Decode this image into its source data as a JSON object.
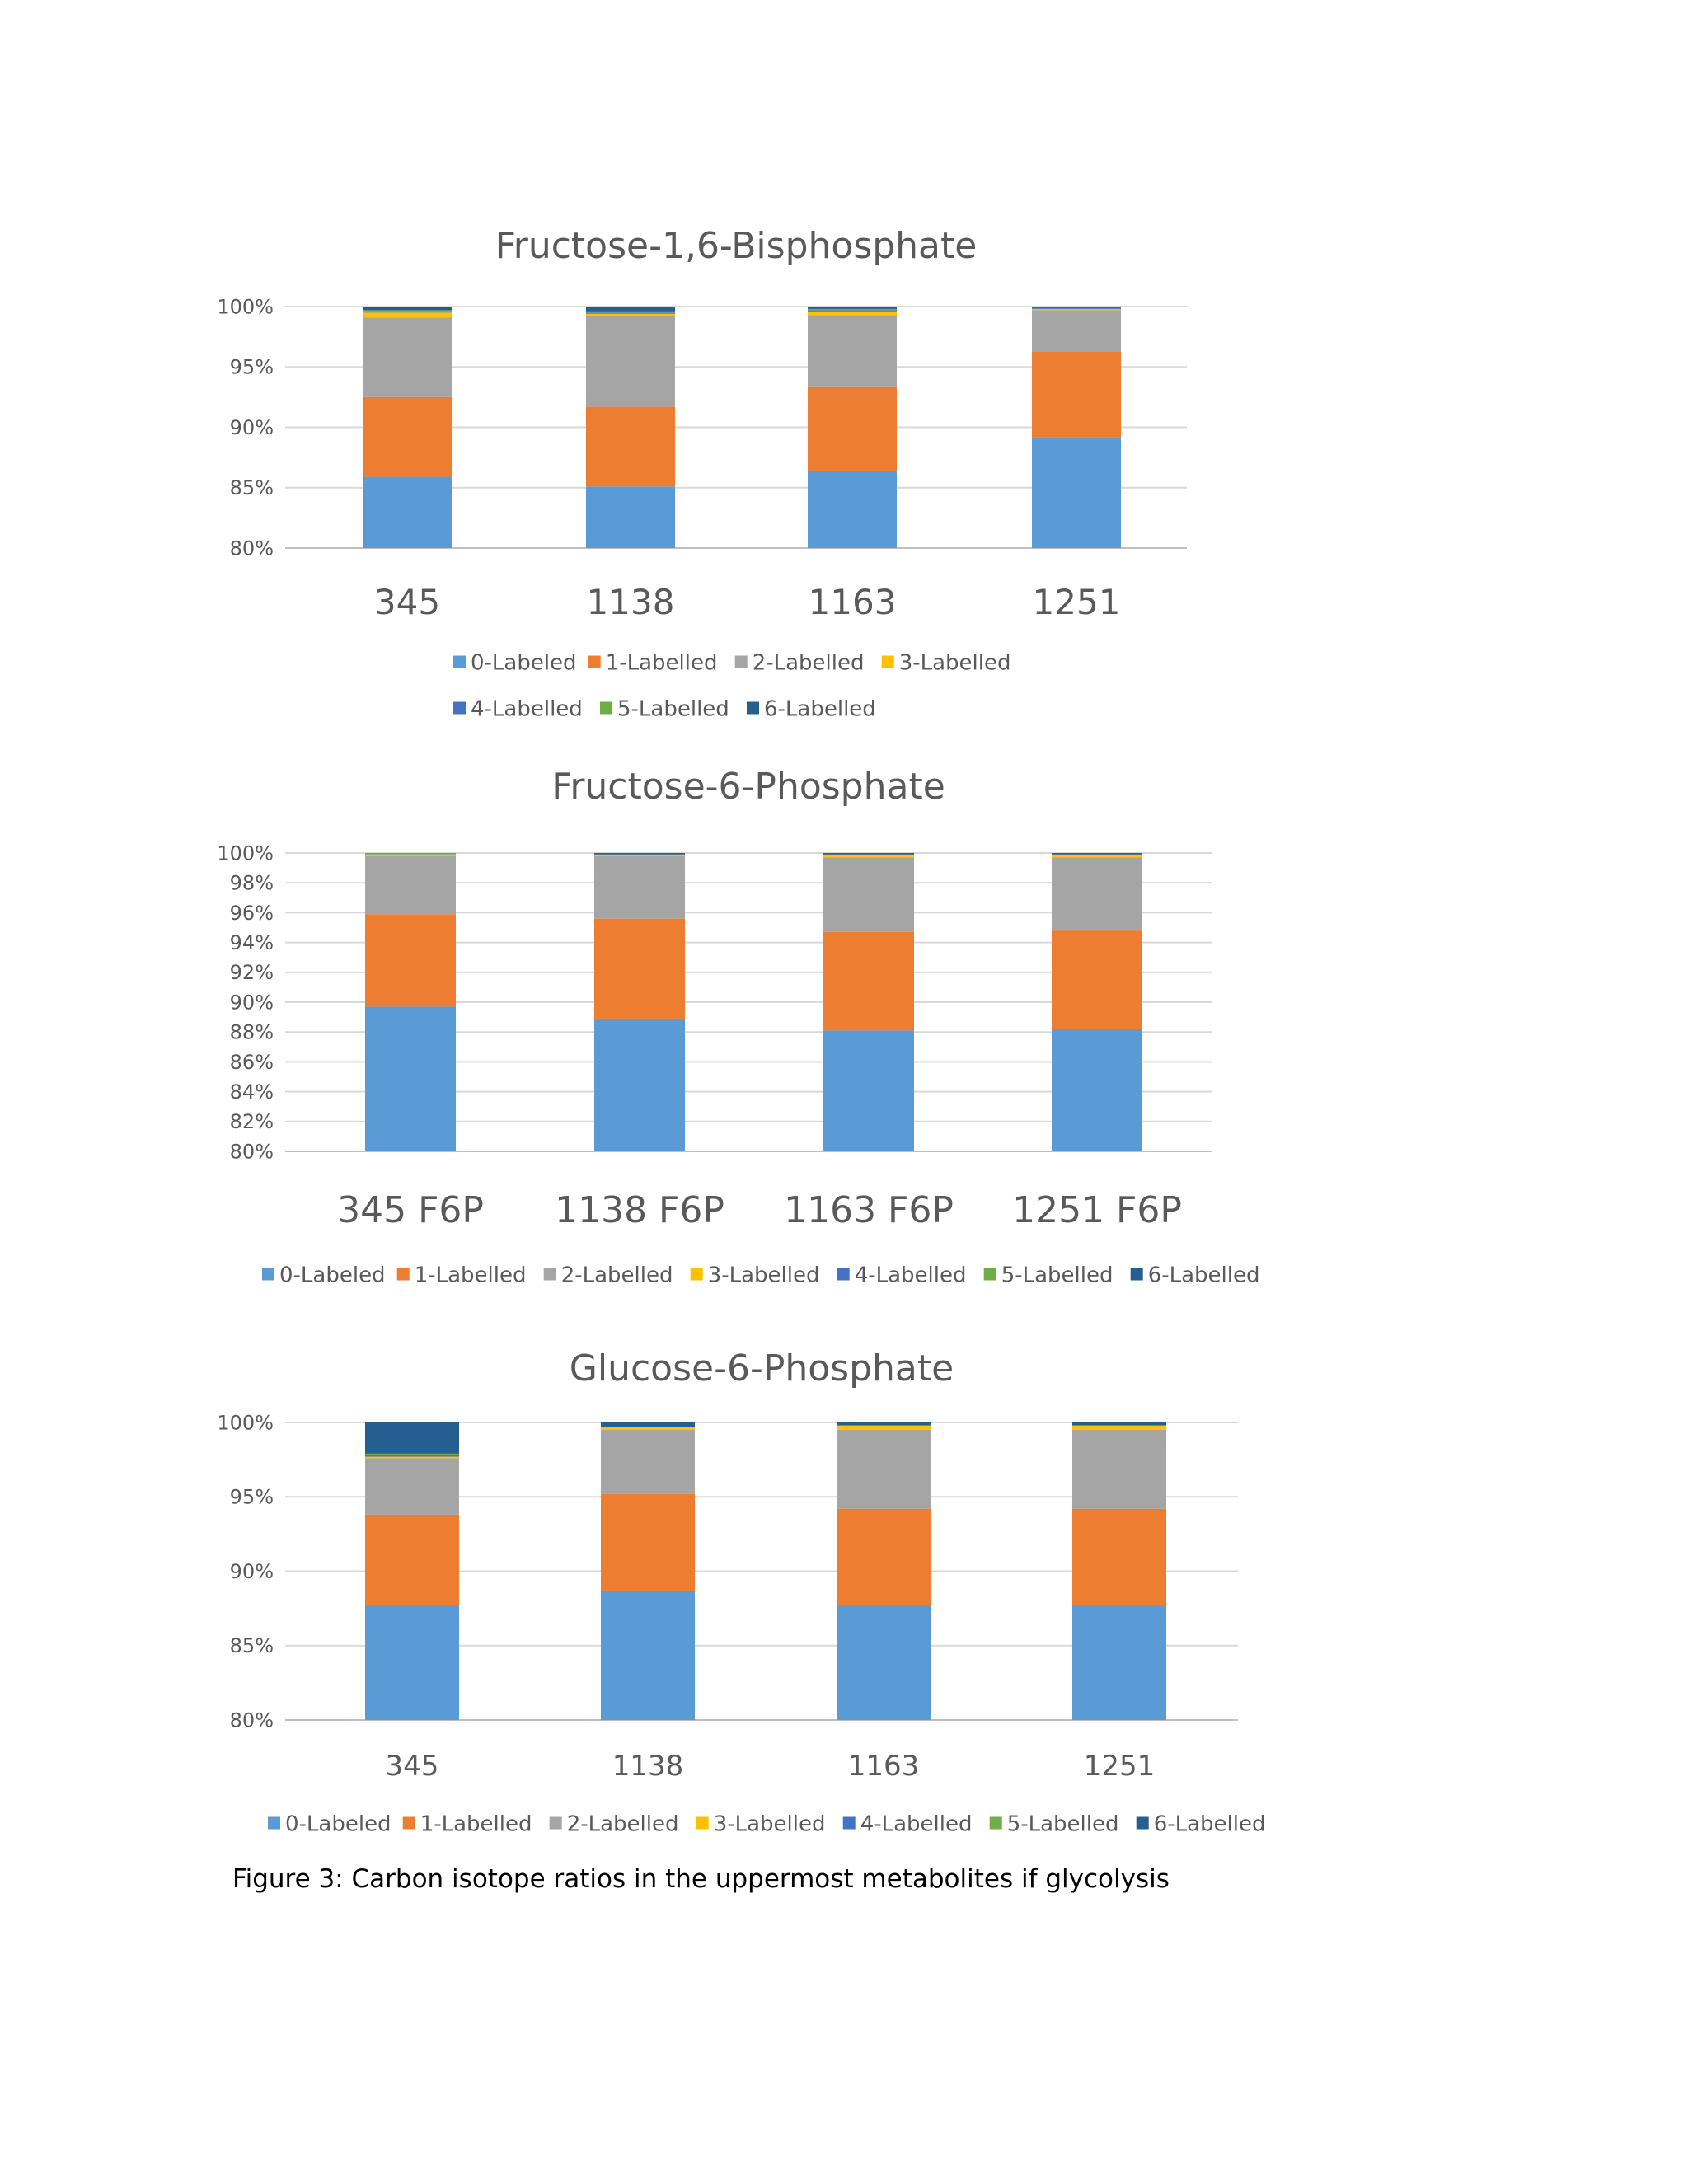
{
  "caption": "Figure 3: Carbon isotope ratios in the uppermost metabolites if glycolysis",
  "colors": {
    "0-Labeled": "#5b9bd5",
    "1-Labelled": "#ed7d31",
    "2-Labelled": "#a5a5a5",
    "3-Labelled": "#ffc000",
    "4-Labelled": "#4472c4",
    "5-Labelled": "#70ad47",
    "6-Labelled": "#255e91"
  },
  "chart_data": [
    {
      "type": "bar",
      "stacked": "percent",
      "title": "Fructose-1,6-Bisphosphate",
      "categories": [
        "345",
        "1138",
        "1163",
        "1251"
      ],
      "ylim": [
        0.8,
        1.0
      ],
      "yticks": [
        "80%",
        "85%",
        "90%",
        "95%",
        "100%"
      ],
      "grid": true,
      "legend": "bottom",
      "series": [
        {
          "name": "0-Labeled",
          "values": [
            0.859,
            0.851,
            0.864,
            0.892
          ]
        },
        {
          "name": "1-Labelled",
          "values": [
            0.066,
            0.066,
            0.07,
            0.071
          ]
        },
        {
          "name": "2-Labelled",
          "values": [
            0.066,
            0.075,
            0.059,
            0.034
          ]
        },
        {
          "name": "3-Labelled",
          "values": [
            0.004,
            0.002,
            0.003,
            0.001
          ]
        },
        {
          "name": "4-Labelled",
          "values": [
            0.001,
            0.001,
            0.001,
            0.001
          ]
        },
        {
          "name": "5-Labelled",
          "values": [
            0.001,
            0.001,
            0.001,
            0.0
          ]
        },
        {
          "name": "6-Labelled",
          "values": [
            0.003,
            0.004,
            0.002,
            0.001
          ]
        }
      ]
    },
    {
      "type": "bar",
      "stacked": "percent",
      "title": "Fructose-6-Phosphate",
      "categories": [
        "345 F6P",
        "1138 F6P",
        "1163 F6P",
        "1251 F6P"
      ],
      "ylim": [
        0.8,
        1.0
      ],
      "yticks": [
        "80%",
        "82%",
        "84%",
        "86%",
        "88%",
        "90%",
        "92%",
        "94%",
        "96%",
        "98%",
        "100%"
      ],
      "grid": true,
      "legend": "bottom",
      "series": [
        {
          "name": "0-Labeled",
          "values": [
            0.897,
            0.889,
            0.881,
            0.882
          ]
        },
        {
          "name": "1-Labelled",
          "values": [
            0.062,
            0.067,
            0.066,
            0.066
          ]
        },
        {
          "name": "2-Labelled",
          "values": [
            0.039,
            0.042,
            0.05,
            0.049
          ]
        },
        {
          "name": "3-Labelled",
          "values": [
            0.001,
            0.001,
            0.002,
            0.002
          ]
        },
        {
          "name": "4-Labelled",
          "values": [
            0.0,
            0.0,
            0.0,
            0.0
          ]
        },
        {
          "name": "5-Labelled",
          "values": [
            0.001,
            0.0,
            0.0,
            0.0
          ]
        },
        {
          "name": "6-Labelled",
          "values": [
            0.0,
            0.001,
            0.001,
            0.001
          ]
        }
      ]
    },
    {
      "type": "bar",
      "stacked": "percent",
      "title": "Glucose-6-Phosphate",
      "categories": [
        "345",
        "1138",
        "1163",
        "1251"
      ],
      "ylim": [
        0.8,
        1.0
      ],
      "yticks": [
        "80%",
        "85%",
        "90%",
        "95%",
        "100%"
      ],
      "grid": true,
      "legend": "bottom",
      "series": [
        {
          "name": "0-Labeled",
          "values": [
            0.877,
            0.887,
            0.877,
            0.877
          ]
        },
        {
          "name": "1-Labelled",
          "values": [
            0.061,
            0.065,
            0.065,
            0.065
          ]
        },
        {
          "name": "2-Labelled",
          "values": [
            0.038,
            0.043,
            0.053,
            0.053
          ]
        },
        {
          "name": "3-Labelled",
          "values": [
            0.001,
            0.002,
            0.003,
            0.003
          ]
        },
        {
          "name": "4-Labelled",
          "values": [
            0.001,
            0.0,
            0.0,
            0.0
          ]
        },
        {
          "name": "5-Labelled",
          "values": [
            0.001,
            0.0,
            0.0,
            0.0
          ]
        },
        {
          "name": "6-Labelled",
          "values": [
            0.021,
            0.003,
            0.002,
            0.002
          ]
        }
      ]
    }
  ]
}
